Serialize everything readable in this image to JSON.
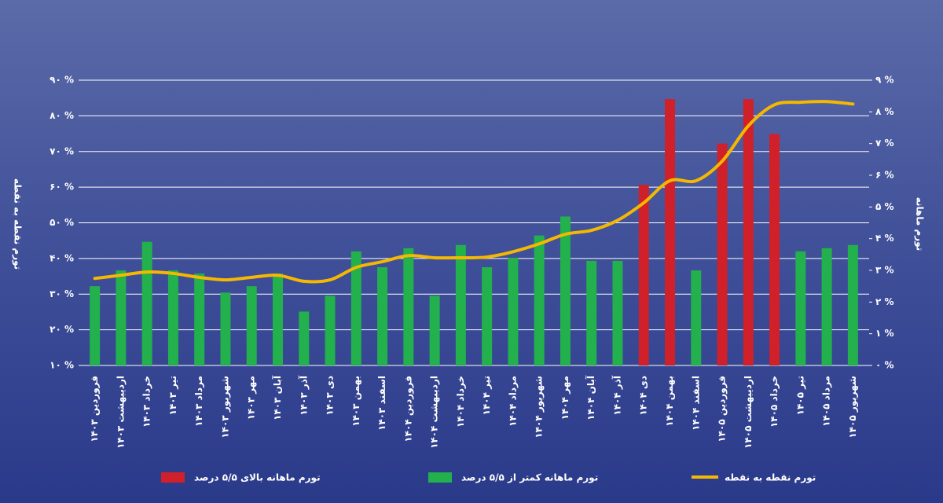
{
  "chart_data": {
    "type": "bar-line",
    "y_label": "تورم نقطه به نقطه",
    "y2_label": "تورم ماهانه",
    "categories": [
      "فروردین ۱۴۰۳",
      "اردیبهشت ۱۴۰۳",
      "خرداد ۱۴۰۳",
      "تیر ۱۴۰۳",
      "مرداد ۱۴۰۳",
      "شهریور ۱۴۰۳",
      "مهر ۱۴۰۳",
      "آبان ۱۴۰۳",
      "آذر ۱۴۰۳",
      "دی ۱۴۰۳",
      "بهمن ۱۴۰۳",
      "اسفند ۱۴۰۳",
      "فروردین ۱۴۰۴",
      "اردیبهشت ۱۴۰۴",
      "خرداد ۱۴۰۴",
      "تیر ۱۴۰۴",
      "مرداد ۱۴۰۴",
      "شهریور ۱۴۰۴",
      "مهر ۱۴۰۴",
      "آبان ۱۴۰۴",
      "آذر ۱۴۰۴",
      "دی ۱۴۰۴",
      "بهمن ۱۴۰۴",
      "اسفند ۱۴۰۴",
      "فروردین ۱۴۰۵",
      "اردیبهشت ۱۴۰۵",
      "خرداد ۱۴۰۵",
      "تیر ۱۴۰۵",
      "مرداد ۱۴۰۵",
      "شهریور ۱۴۰۵"
    ],
    "series": [
      {
        "name": "تورم ماهانه بالای ۵/۵ درصد",
        "kind": "bar",
        "axis": "y2",
        "color": "#d0202a",
        "values": [
          null,
          null,
          null,
          null,
          null,
          null,
          null,
          null,
          null,
          null,
          null,
          null,
          null,
          null,
          null,
          null,
          null,
          null,
          null,
          null,
          null,
          5.7,
          8.4,
          null,
          7.0,
          8.4,
          7.3,
          null,
          null,
          null
        ]
      },
      {
        "name": "تورم ماهانه کمتر از ۵/۵ درصد",
        "kind": "bar",
        "axis": "y2",
        "color": "#22b14c",
        "values": [
          2.5,
          3.0,
          3.9,
          3.0,
          2.9,
          2.3,
          2.5,
          2.9,
          1.7,
          2.2,
          3.6,
          3.1,
          3.7,
          2.2,
          3.8,
          3.1,
          3.4,
          4.1,
          4.7,
          3.3,
          3.3,
          null,
          null,
          3.0,
          null,
          null,
          null,
          3.6,
          3.7,
          3.8
        ]
      },
      {
        "name": "تورم نقطه به نقطه",
        "kind": "line",
        "axis": "y",
        "color": "#f5b800",
        "values": [
          34.4,
          35.3,
          36.2,
          35.8,
          34.7,
          34.0,
          34.7,
          35.3,
          33.6,
          34.0,
          37.5,
          39.1,
          40.8,
          40.2,
          40.2,
          40.4,
          41.9,
          44.1,
          46.8,
          47.9,
          50.7,
          55.6,
          61.8,
          61.8,
          67.3,
          77.2,
          83.1,
          83.8,
          84.0,
          83.3
        ]
      }
    ],
    "ylim": [
      10,
      90
    ],
    "yticks": [
      {
        "value": 10,
        "label": "۱۰ %"
      },
      {
        "value": 20,
        "label": "۲۰ %"
      },
      {
        "value": 30,
        "label": "۳۰ %"
      },
      {
        "value": 40,
        "label": "۴۰ %"
      },
      {
        "value": 50,
        "label": "۵۰ %"
      },
      {
        "value": 60,
        "label": "۶۰ %"
      },
      {
        "value": 70,
        "label": "۷۰ %"
      },
      {
        "value": 80,
        "label": "۸۰ %"
      },
      {
        "value": 90,
        "label": "۹۰ %"
      }
    ],
    "y2lim": [
      0,
      9
    ],
    "y2ticks": [
      {
        "value": 0,
        "label": "۰ %"
      },
      {
        "value": 1,
        "label": "۱ %"
      },
      {
        "value": 2,
        "label": "۲ %"
      },
      {
        "value": 3,
        "label": "۳ %"
      },
      {
        "value": 4,
        "label": "۴ %"
      },
      {
        "value": 5,
        "label": "۵ %"
      },
      {
        "value": 6,
        "label": "۶ %"
      },
      {
        "value": 7,
        "label": "۷ %"
      },
      {
        "value": 8,
        "label": "۸ %"
      },
      {
        "value": 9,
        "label": "۹ %"
      }
    ],
    "grid": true
  }
}
